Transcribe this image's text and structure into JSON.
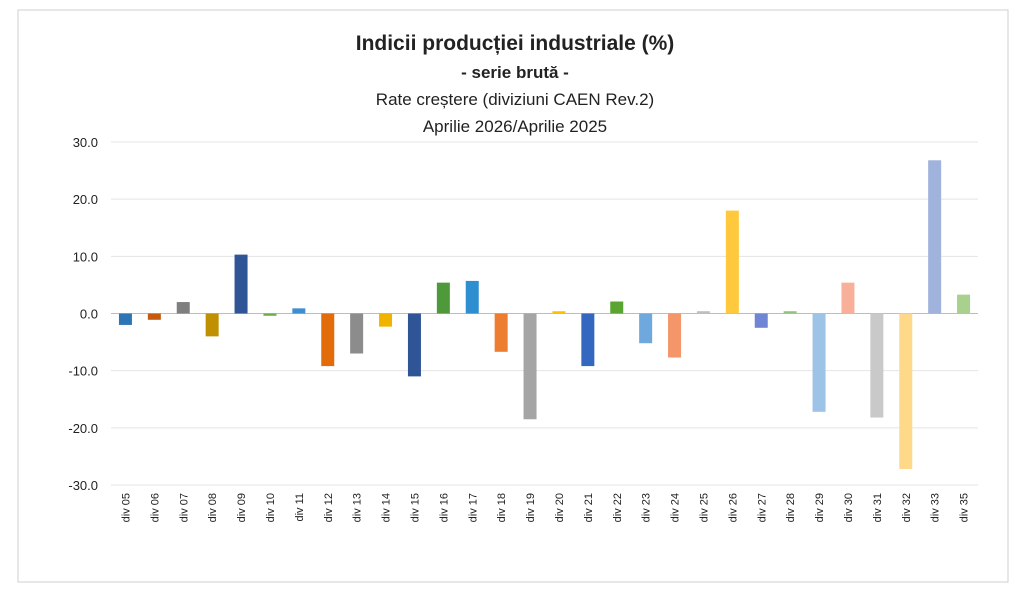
{
  "chart_data": {
    "type": "bar",
    "title": "Indicii producției industriale (%)",
    "subtitle": "- serie brută -",
    "subtitle2": "Rate creștere (diviziuni CAEN Rev.2)",
    "subtitle3": "Aprilie 2026/Aprilie  2025",
    "categories": [
      "div 05",
      "div 06",
      "div 07",
      "div 08",
      "div 09",
      "div 10",
      "div 11",
      "div 12",
      "div 13",
      "div 14",
      "div 15",
      "div 16",
      "div 17",
      "div 18",
      "div 19",
      "div 20",
      "div 21",
      "div 22",
      "div 23",
      "div 24",
      "div 25",
      "div 26",
      "div 27",
      "div 28",
      "div 29",
      "div 30",
      "div 31",
      "div 32",
      "div 33",
      "div 35"
    ],
    "values": [
      -2.0,
      -1.1,
      2.0,
      -4.0,
      10.3,
      -0.4,
      0.9,
      -9.2,
      -7.0,
      -2.3,
      -11.0,
      5.4,
      5.7,
      -6.7,
      -18.5,
      0.4,
      -9.2,
      2.1,
      -5.2,
      -7.7,
      0.4,
      18.0,
      -2.5,
      0.4,
      -17.2,
      5.4,
      -18.2,
      -27.2,
      26.8,
      3.3
    ],
    "colors": [
      "#2e75b6",
      "#c55a11",
      "#7f7f7f",
      "#bf9000",
      "#2f5597",
      "#70ad47",
      "#3d8fd1",
      "#e36c0a",
      "#8c8c8c",
      "#f0b400",
      "#2f5597",
      "#4e9a3a",
      "#2e8fd0",
      "#ed7d31",
      "#a5a5a5",
      "#ffc000",
      "#3467c0",
      "#5aa532",
      "#6fa8dc",
      "#f4956a",
      "#bfbfbf",
      "#ffc83d",
      "#7085d4",
      "#93c47d",
      "#9dc3e6",
      "#f8b09a",
      "#c9c9c9",
      "#ffd98a",
      "#9fb3dc",
      "#a9d18e"
    ],
    "ylim": [
      -30,
      30
    ],
    "yticks": [
      {
        "value": -30,
        "label": "-30.0"
      },
      {
        "value": -20,
        "label": "-20.0"
      },
      {
        "value": -10,
        "label": "-10.0"
      },
      {
        "value": 0,
        "label": "0.0"
      },
      {
        "value": 10,
        "label": "10.0"
      },
      {
        "value": 20,
        "label": "20.0"
      },
      {
        "value": 30,
        "label": "30.0"
      }
    ],
    "grid": true
  }
}
